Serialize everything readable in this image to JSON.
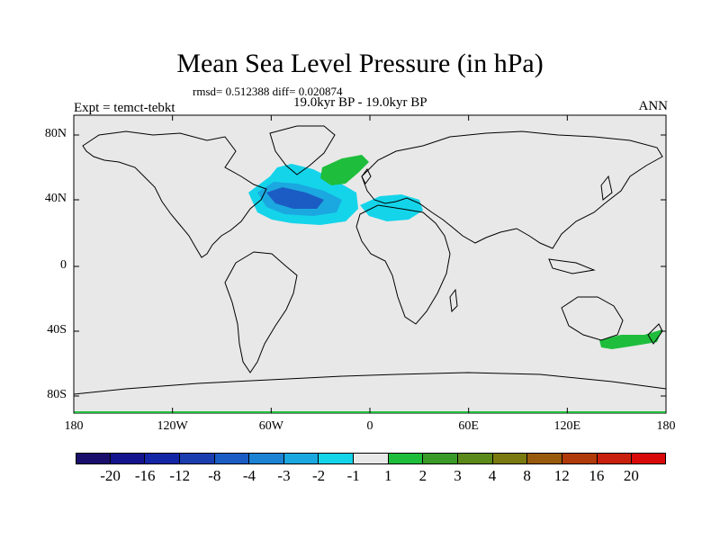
{
  "title": "Mean Sea Level Pressure (in hPa)",
  "stats": "rmsd= 0.512388 diff= 0.020874",
  "period": "19.0kyr BP - 19.0kyr BP",
  "experiment": "Expt = temct-tebkt",
  "season": "ANN",
  "axes": {
    "x_ticks": [
      "180",
      "120W",
      "60W",
      "0",
      "60E",
      "120E",
      "180"
    ],
    "y_ticks": [
      "80N",
      "40N",
      "0",
      "40S",
      "80S"
    ]
  },
  "colorbar": {
    "labels": [
      "-20",
      "-16",
      "-12",
      "-8",
      "-4",
      "-3",
      "-2",
      "-1",
      "1",
      "2",
      "3",
      "4",
      "8",
      "12",
      "16",
      "20"
    ],
    "colors": [
      "#1a0f6b",
      "#14148f",
      "#1426a6",
      "#1a3eb0",
      "#1b5cc4",
      "#1b82d4",
      "#1ba8e0",
      "#14d4ea",
      "#e8e8e8",
      "#1ebe3c",
      "#3a9a28",
      "#5c8a1a",
      "#7a7a10",
      "#985a0c",
      "#b03a0a",
      "#c8200c",
      "#d80a0a"
    ]
  },
  "colors": {
    "land_ocean_bg": "#e8e8e8",
    "coast": "#000000"
  },
  "anomalies": [
    {
      "name": "north-atlantic-cyan",
      "level": "-2",
      "color": "#14d4ea"
    },
    {
      "name": "north-atlantic-blue",
      "level": "-3",
      "color": "#1ba8e0"
    },
    {
      "name": "north-atlantic-core",
      "level": "-4",
      "color": "#1b5cc4"
    },
    {
      "name": "mediterranean-cyan",
      "level": "-2",
      "color": "#14d4ea"
    },
    {
      "name": "nordic-green",
      "level": "1",
      "color": "#1ebe3c"
    },
    {
      "name": "southern-green",
      "level": "1",
      "color": "#1ebe3c"
    }
  ]
}
